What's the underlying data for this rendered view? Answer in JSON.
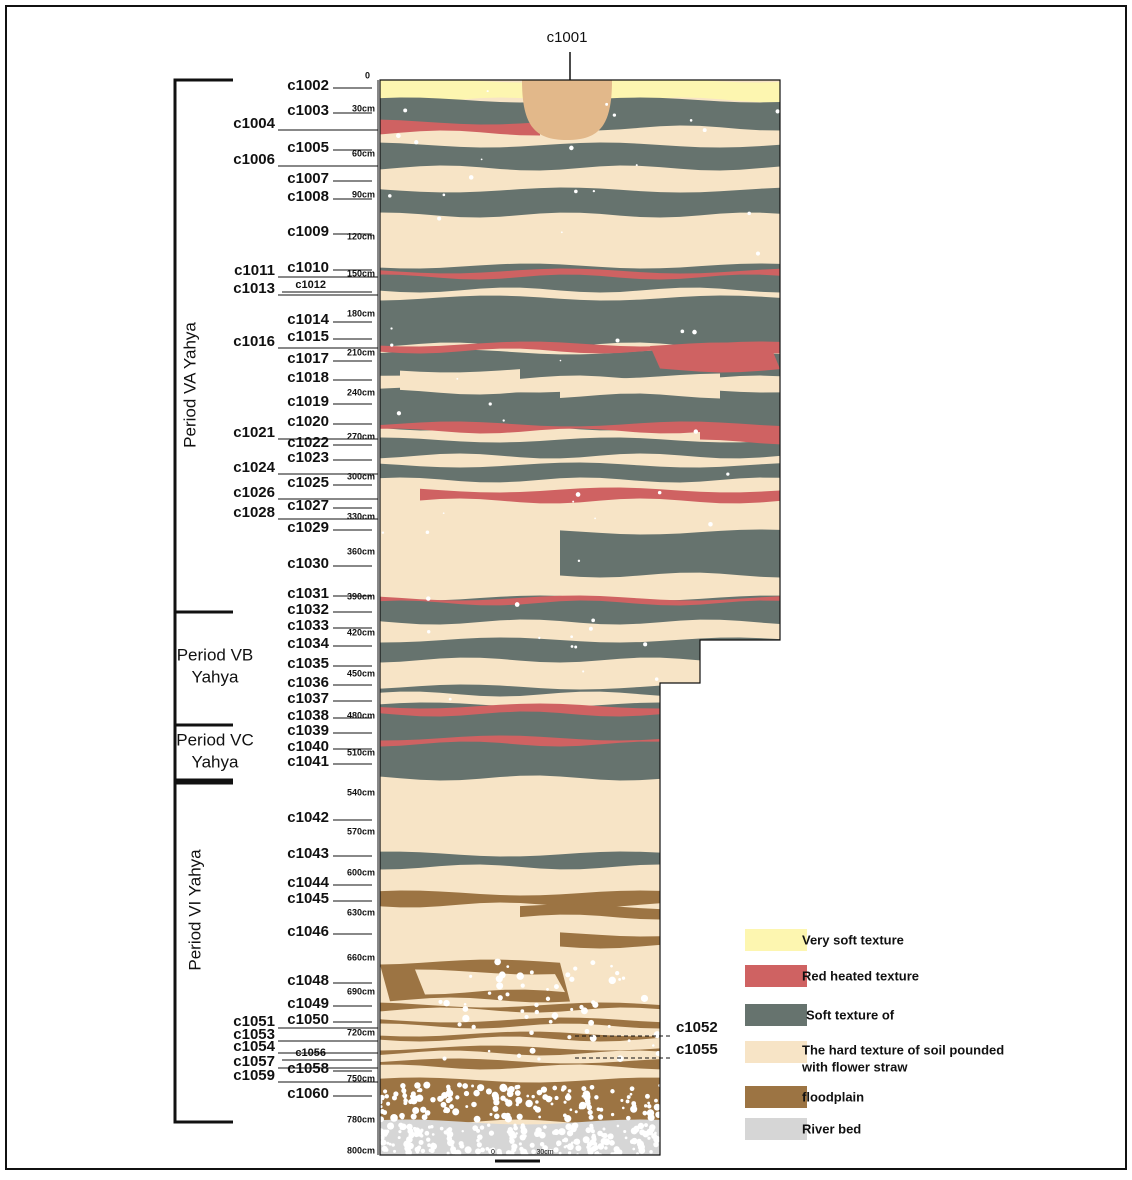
{
  "top_context": "c1001",
  "contexts": [
    "c1002",
    "c1003",
    "c1004",
    "c1005",
    "c1006",
    "c1007",
    "c1008",
    "c1009",
    "c1010",
    "c1011",
    "c1012",
    "c1013",
    "c1014",
    "c1015",
    "c1016",
    "c1017",
    "c1018",
    "c1019",
    "c1020",
    "c1021",
    "c1022",
    "c1023",
    "c1024",
    "c1025",
    "c1026",
    "c1027",
    "c1028",
    "c1029",
    "c1030",
    "c1031",
    "c1032",
    "c1033",
    "c1034",
    "c1035",
    "c1036",
    "c1037",
    "c1038",
    "c1039",
    "c1040",
    "c1041",
    "c1042",
    "c1043",
    "c1044",
    "c1045",
    "c1046",
    "c1048",
    "c1049",
    "c1050",
    "c1051",
    "c1052",
    "c1053",
    "c1054",
    "c1055",
    "c1056",
    "c1057",
    "c1058",
    "c1059",
    "c1060"
  ],
  "depth_labels": [
    "0",
    "30cm",
    "60cm",
    "90cm",
    "120cm",
    "150cm",
    "180cm",
    "210cm",
    "240cm",
    "270cm",
    "300cm",
    "330cm",
    "360cm",
    "390cm",
    "420cm",
    "450cm",
    "480cm",
    "510cm",
    "540cm",
    "570cm",
    "600cm",
    "630cm",
    "660cm",
    "690cm",
    "720cm",
    "750cm",
    "780cm",
    "800cm"
  ],
  "periods": [
    {
      "lines": [
        "Period VA Yahya"
      ]
    },
    {
      "lines": [
        "Period VB",
        "Yahya"
      ]
    },
    {
      "lines": [
        "Period VC",
        "Yahya"
      ]
    },
    {
      "lines": [
        "Period VI Yahya"
      ]
    }
  ],
  "legend": [
    {
      "lines": [
        "Very soft texture"
      ],
      "color": "#fdf6b0"
    },
    {
      "lines": [
        "Red heated texture"
      ],
      "color": "#cf6262"
    },
    {
      "lines": [
        "Soft texture of"
      ],
      "color": "#66736e"
    },
    {
      "lines": [
        "The hard texture of soil pounded",
        "with flower straw"
      ],
      "color": "#f7e4c6"
    },
    {
      "lines": [
        "floodplain"
      ],
      "color": "#9c7443"
    },
    {
      "lines": [
        "River bed"
      ],
      "color": "#d6d6d6"
    }
  ],
  "scale_bar": {
    "start": "0",
    "end": "30cm"
  }
}
